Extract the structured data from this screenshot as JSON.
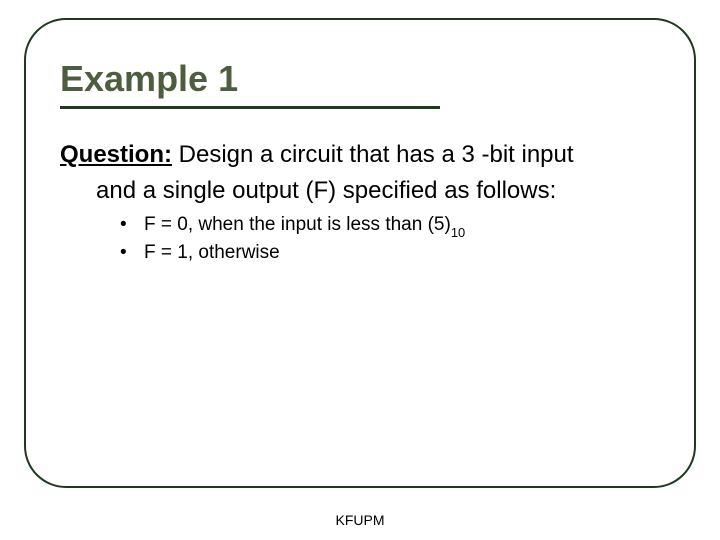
{
  "colors": {
    "frame_border": "#203820",
    "title_color": "#4d5d3e",
    "title_underline": "#203820",
    "body_text": "#000000",
    "background": "#ffffff"
  },
  "layout": {
    "slide_width": 720,
    "slide_height": 540,
    "frame_radius": 42
  },
  "title": "Example 1",
  "question": {
    "label": "Question:",
    "text_part1": " Design a circuit that has a 3 -bit input",
    "text_part2": "and a single output (F) specified as follows:"
  },
  "bullets": [
    {
      "dot": "•",
      "before_sub": "F = 0, when the input is less than (5)",
      "sub": "10",
      "after_sub": ""
    },
    {
      "dot": "•",
      "before_sub": "F = 1, otherwise",
      "sub": "",
      "after_sub": ""
    }
  ],
  "footer": "KFUPM"
}
